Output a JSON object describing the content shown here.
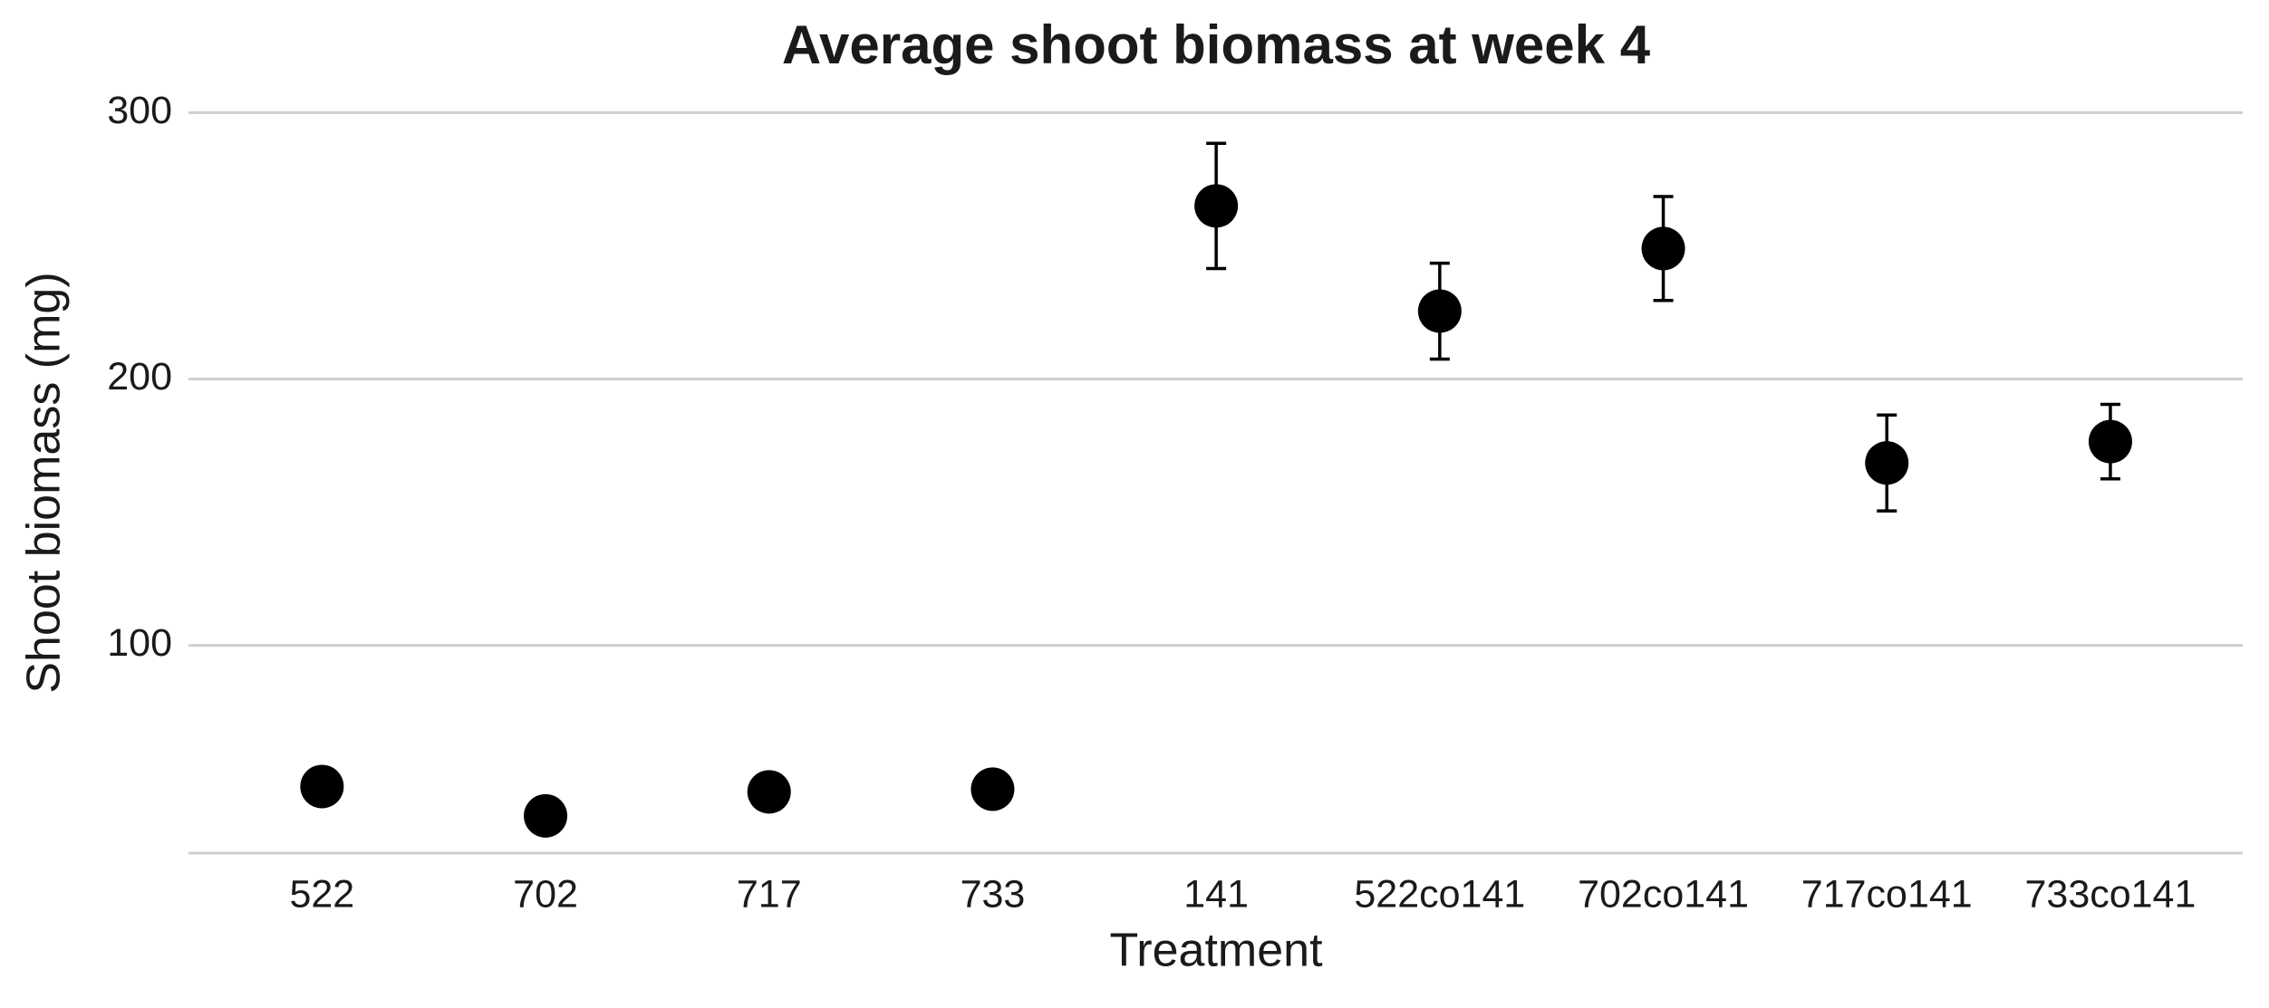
{
  "chart_data": {
    "type": "scatter",
    "title": "Average shoot biomass at week 4",
    "x_label": "Treatment",
    "y_label": "Shoot biomass (mg)",
    "categories": [
      "522",
      "702",
      "717",
      "733",
      "141",
      "522co141",
      "702co141",
      "717co141",
      "733co141"
    ],
    "values": [
      47,
      36,
      45,
      46,
      265,
      225.5,
      249,
      168.5,
      176.5
    ],
    "errors": [
      null,
      null,
      null,
      null,
      23.5,
      18,
      19.5,
      18,
      14
    ],
    "color": "#000000",
    "ylim": [
      22,
      310
    ],
    "yticks": [
      100,
      200,
      300
    ],
    "grid": true
  }
}
